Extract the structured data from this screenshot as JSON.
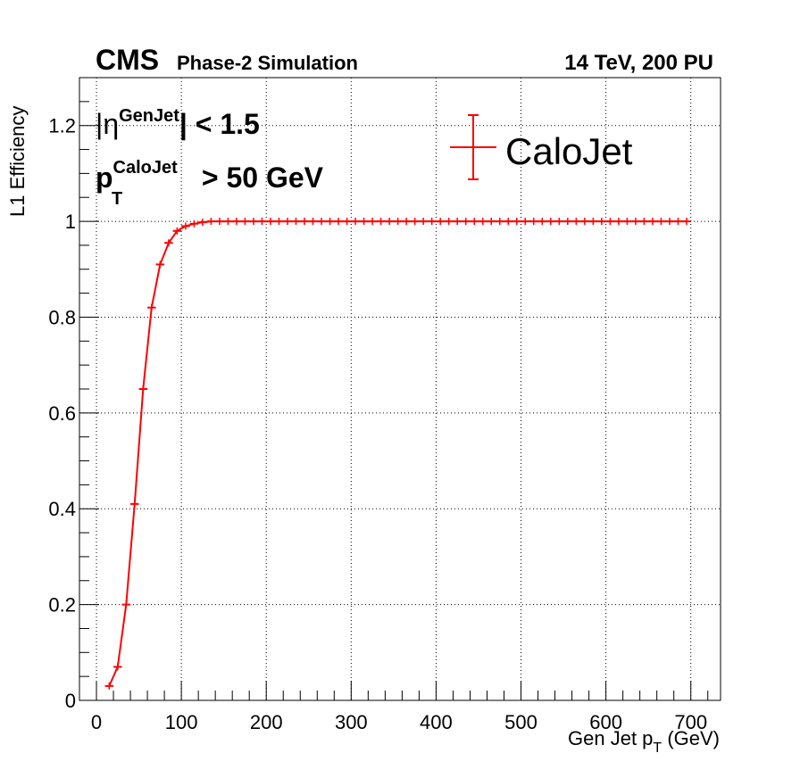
{
  "header": {
    "experiment": "CMS",
    "subtitle": "Phase-2 Simulation",
    "energy": "14 TeV, 200 PU"
  },
  "annotations": {
    "eta_cut": {
      "prefix": "|η",
      "superscript": "GenJet",
      "suffix": "| < 1.5"
    },
    "pt_cut": {
      "base": "p",
      "subscript": "T",
      "superscript": "CaloJet",
      "suffix": " > 50 GeV"
    }
  },
  "colors": {
    "series": "#ff0000",
    "axis": "#000000",
    "grid": "#000000"
  },
  "chart_data": {
    "type": "line",
    "xlabel": {
      "base": "Gen Jet p",
      "subscript": "T",
      "suffix": " (GeV)"
    },
    "ylabel": "L1 Efficiency",
    "xlim": [
      -20,
      735
    ],
    "ylim": [
      0,
      1.3
    ],
    "x_ticks": [
      0,
      100,
      200,
      300,
      400,
      500,
      600,
      700
    ],
    "x_tick_labels": [
      "0",
      "100",
      "200",
      "300",
      "400",
      "500",
      "600",
      "700"
    ],
    "y_ticks": [
      0,
      0.2,
      0.4,
      0.6,
      0.8,
      1,
      1.2
    ],
    "y_tick_labels": [
      "0",
      "0.2",
      "0.4",
      "0.6",
      "0.8",
      "1",
      "1.2"
    ],
    "grid": true,
    "legend": {
      "placement": "top-right",
      "entries": [
        "CaloJet"
      ]
    },
    "series": [
      {
        "name": "CaloJet",
        "x": [
          15,
          25,
          35,
          45,
          55,
          65,
          75,
          85,
          95,
          105,
          115,
          125,
          135,
          145,
          155,
          165,
          175,
          185,
          195,
          205,
          215,
          225,
          235,
          245,
          255,
          265,
          275,
          285,
          295,
          305,
          315,
          325,
          335,
          345,
          355,
          365,
          375,
          385,
          395,
          405,
          415,
          425,
          435,
          445,
          455,
          465,
          475,
          485,
          495,
          505,
          515,
          525,
          535,
          545,
          555,
          565,
          575,
          585,
          595,
          605,
          615,
          625,
          635,
          645,
          655,
          665,
          675,
          685,
          695
        ],
        "y": [
          0.03,
          0.07,
          0.2,
          0.41,
          0.65,
          0.82,
          0.91,
          0.955,
          0.98,
          0.99,
          0.995,
          0.998,
          1,
          1,
          1,
          1,
          1,
          1,
          1,
          1,
          1,
          1,
          1,
          1,
          1,
          1,
          1,
          1,
          1,
          1,
          1,
          1,
          1,
          1,
          1,
          1,
          1,
          1,
          1,
          1,
          1,
          1,
          1,
          1,
          1,
          1,
          1,
          1,
          1,
          1,
          1,
          1,
          1,
          1,
          1,
          1,
          1,
          1,
          1,
          1,
          1,
          1,
          1,
          1,
          1,
          1,
          1,
          1,
          1
        ],
        "x_err": 5
      }
    ]
  }
}
